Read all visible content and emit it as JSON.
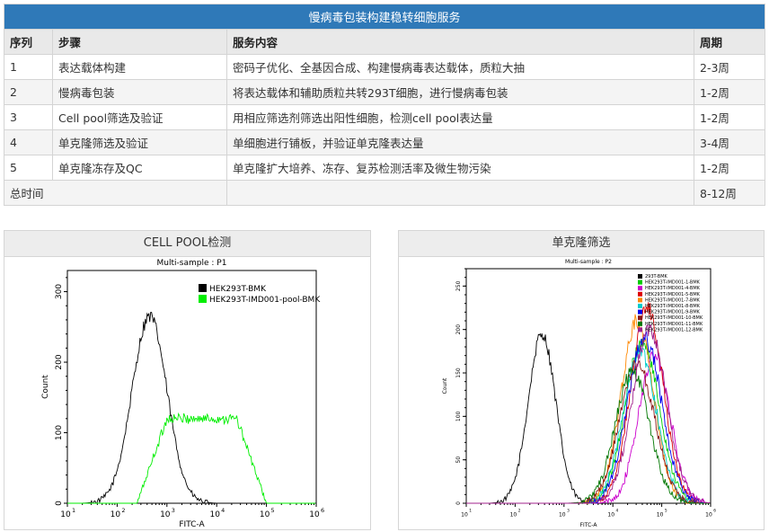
{
  "table": {
    "title": "慢病毒包装构建稳转细胞服务",
    "headers": [
      "序列",
      "步骤",
      "服务内容",
      "周期"
    ],
    "rows": [
      [
        "1",
        "表达载体构建",
        "密码子优化、全基因合成、构建慢病毒表达载体，质粒大抽",
        "2-3周"
      ],
      [
        "2",
        "慢病毒包装",
        "将表达载体和辅助质粒共转293T细胞，进行慢病毒包装",
        "1-2周"
      ],
      [
        "3",
        "Cell pool筛选及验证",
        "用相应筛选剂筛选出阳性细胞，检测cell pool表达量",
        "1-2周"
      ],
      [
        "4",
        "单克隆筛选及验证",
        "单细胞进行铺板，并验证单克隆表达量",
        "3-4周"
      ],
      [
        "5",
        "单克隆冻存及QC",
        "单克隆扩大培养、冻存、复苏检测活率及微生物污染",
        "1-2周"
      ]
    ],
    "total_label": "总时间",
    "total_value": "8-12周"
  },
  "panel_left": {
    "title": "CELL POOL检测",
    "plot_title": "Multi-sample : P1",
    "xlabel": "FITC-A",
    "ylabel": "Count",
    "yticks": [
      "0",
      "100",
      "200",
      "300"
    ],
    "xticks": [
      "10",
      "10",
      "10",
      "10",
      "10",
      "10"
    ],
    "xtick_exp": [
      "1",
      "2",
      "3",
      "4",
      "5",
      "6"
    ],
    "legend": [
      {
        "name": "HEK293T-BMK",
        "color": "#000000"
      },
      {
        "name": "HEK293T-IMD001-pool-BMK",
        "color": "#00ee00"
      }
    ]
  },
  "panel_right": {
    "title": "单克隆筛选",
    "plot_title": "Multi-sample : P2",
    "xlabel": "FITC-A",
    "ylabel": "Count",
    "yticks": [
      "0",
      "50",
      "100",
      "150",
      "200",
      "250"
    ],
    "xticks": [
      "10",
      "10",
      "10",
      "10",
      "10",
      "10"
    ],
    "xtick_exp": [
      "1",
      "2",
      "3",
      "4",
      "5",
      "6"
    ],
    "legend": [
      {
        "name": "293T-BMK",
        "color": "#000000"
      },
      {
        "name": "HEK293T-IMD001-1-BMK",
        "color": "#00cc00"
      },
      {
        "name": "HEK293T-IMD001-4-BMK",
        "color": "#cc00cc"
      },
      {
        "name": "HEK293T-IMD001-5-BMK",
        "color": "#dd0000"
      },
      {
        "name": "HEK293T-IMD001-7-BMK",
        "color": "#ff8800"
      },
      {
        "name": "HEK293T-IMD001-8-BMK",
        "color": "#00cccc"
      },
      {
        "name": "HEK293T-IMD001-9-BMK",
        "color": "#0000ee"
      },
      {
        "name": "HEK293T-IMD001-10-BMK",
        "color": "#8b1a1a"
      },
      {
        "name": "HEK293T-IMD001-11-BMK",
        "color": "#007700"
      },
      {
        "name": "HEK293T-IMD001-12-BMK",
        "color": "#a0208c"
      }
    ]
  },
  "chart_data": [
    {
      "type": "line",
      "title": "Multi-sample : P1",
      "xlabel": "FITC-A",
      "ylabel": "Count",
      "xscale": "log",
      "xlim": [
        10,
        1000000
      ],
      "ylim": [
        0,
        330
      ],
      "legend_position": "top-right",
      "series": [
        {
          "name": "HEK293T-BMK",
          "color": "#000000",
          "center_log": 2.65,
          "width_log": 0.35,
          "peak": 265,
          "noise": 18
        },
        {
          "name": "HEK293T-IMD001-pool-BMK",
          "color": "#00ee00",
          "plateau_from_log": 3.0,
          "plateau_to_log": 4.4,
          "rise_start_log": 2.4,
          "fall_end_log": 5.0,
          "peak": 120,
          "noise": 14
        }
      ]
    },
    {
      "type": "line",
      "title": "Multi-sample : P2",
      "xlabel": "FITC-A",
      "ylabel": "Count",
      "xscale": "log",
      "xlim": [
        10,
        1000000
      ],
      "ylim": [
        0,
        270
      ],
      "legend_position": "top-right",
      "series": [
        {
          "name": "293T-BMK",
          "color": "#000000",
          "center_log": 2.55,
          "width_log": 0.28,
          "peak": 195,
          "noise": 14
        },
        {
          "name": "HEK293T-IMD001-1-BMK",
          "color": "#00cc00",
          "center_log": 4.6,
          "width_log": 0.35,
          "peak": 185,
          "noise": 18
        },
        {
          "name": "HEK293T-IMD001-4-BMK",
          "color": "#cc00cc",
          "center_log": 4.85,
          "width_log": 0.32,
          "peak": 170,
          "noise": 18
        },
        {
          "name": "HEK293T-IMD001-5-BMK",
          "color": "#dd0000",
          "center_log": 4.7,
          "width_log": 0.33,
          "peak": 225,
          "noise": 18
        },
        {
          "name": "HEK293T-IMD001-7-BMK",
          "color": "#ff8800",
          "center_log": 4.5,
          "width_log": 0.33,
          "peak": 210,
          "noise": 18
        },
        {
          "name": "HEK293T-IMD001-8-BMK",
          "color": "#00cccc",
          "center_log": 4.55,
          "width_log": 0.34,
          "peak": 175,
          "noise": 18
        },
        {
          "name": "HEK293T-IMD001-9-BMK",
          "color": "#0000ee",
          "center_log": 4.65,
          "width_log": 0.35,
          "peak": 190,
          "noise": 18
        },
        {
          "name": "HEK293T-IMD001-10-BMK",
          "color": "#8b1a1a",
          "center_log": 4.5,
          "width_log": 0.36,
          "peak": 160,
          "noise": 16
        },
        {
          "name": "HEK293T-IMD001-11-BMK",
          "color": "#007700",
          "center_log": 4.4,
          "width_log": 0.35,
          "peak": 150,
          "noise": 16
        },
        {
          "name": "HEK293T-IMD001-12-BMK",
          "color": "#a0208c",
          "center_log": 4.75,
          "width_log": 0.35,
          "peak": 200,
          "noise": 18
        }
      ]
    }
  ]
}
